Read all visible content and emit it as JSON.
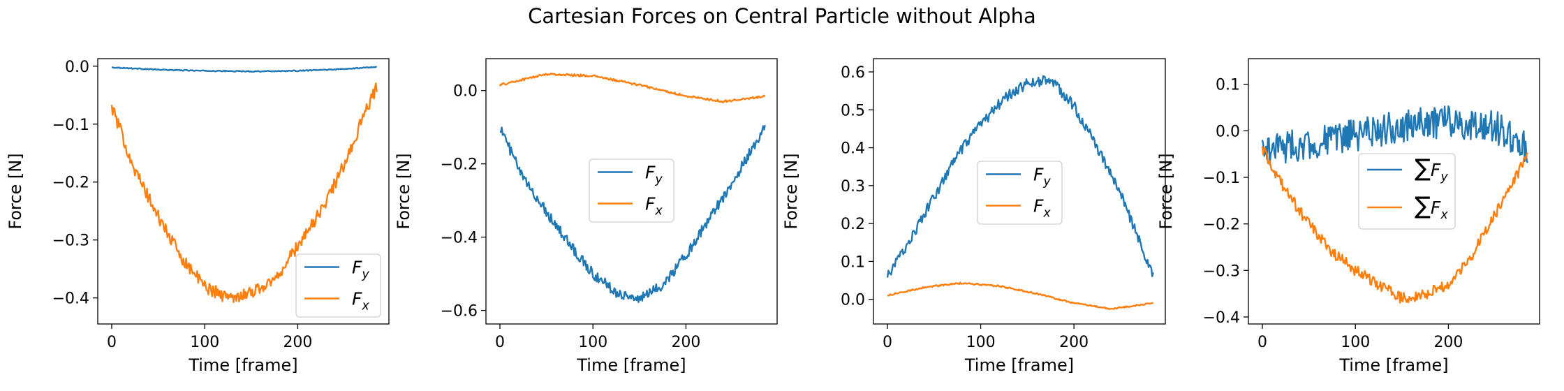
{
  "title": "Cartesian Forces on Central Particle without Alpha",
  "colors": {
    "Fy": "#1f77b4",
    "Fx": "#ff7f0e"
  },
  "chart_data": [
    {
      "type": "line",
      "xlabel": "Time [frame]",
      "ylabel": "Force [N]",
      "xlim": [
        -15,
        298
      ],
      "ylim": [
        -0.445,
        0.013
      ],
      "xticks": [
        0,
        100,
        200
      ],
      "yticks": [
        0.0,
        -0.1,
        -0.2,
        -0.3,
        -0.4
      ],
      "legend": "lower-right",
      "series": [
        {
          "name": "F_y",
          "key": "Fy",
          "noise": 0.0008,
          "x": [
            0,
            50,
            100,
            150,
            200,
            250,
            285
          ],
          "values": [
            -0.002,
            -0.006,
            -0.008,
            -0.009,
            -0.008,
            -0.005,
            -0.001
          ]
        },
        {
          "name": "F_x",
          "key": "Fx",
          "noise": 0.011,
          "x": [
            0,
            25,
            50,
            75,
            100,
            125,
            150,
            175,
            200,
            225,
            250,
            270,
            285
          ],
          "values": [
            -0.07,
            -0.18,
            -0.26,
            -0.33,
            -0.38,
            -0.4,
            -0.39,
            -0.37,
            -0.31,
            -0.25,
            -0.17,
            -0.09,
            -0.035
          ]
        }
      ]
    },
    {
      "type": "line",
      "xlabel": "Time [frame]",
      "ylabel": "Force [N]",
      "xlim": [
        -15,
        298
      ],
      "ylim": [
        -0.637,
        0.087
      ],
      "xticks": [
        0,
        100,
        200
      ],
      "yticks": [
        0.0,
        -0.2,
        -0.4,
        -0.6
      ],
      "legend": "center-right",
      "series": [
        {
          "name": "F_y",
          "key": "Fy",
          "noise": 0.014,
          "x": [
            0,
            25,
            50,
            75,
            100,
            125,
            150,
            175,
            200,
            225,
            250,
            285
          ],
          "values": [
            -0.1,
            -0.24,
            -0.33,
            -0.42,
            -0.5,
            -0.55,
            -0.57,
            -0.53,
            -0.45,
            -0.35,
            -0.25,
            -0.1
          ]
        },
        {
          "name": "F_x",
          "key": "Fx",
          "noise": 0.003,
          "x": [
            0,
            50,
            100,
            150,
            200,
            240,
            285
          ],
          "values": [
            0.015,
            0.045,
            0.04,
            0.015,
            -0.015,
            -0.03,
            -0.015
          ]
        }
      ]
    },
    {
      "type": "line",
      "xlabel": "Time [frame]",
      "ylabel": "Force [N]",
      "xlim": [
        -15,
        298
      ],
      "ylim": [
        -0.065,
        0.635
      ],
      "xticks": [
        0,
        100,
        200
      ],
      "yticks": [
        0.0,
        0.1,
        0.2,
        0.3,
        0.4,
        0.5,
        0.6
      ],
      "legend": "center-right",
      "series": [
        {
          "name": "F_y",
          "key": "Fy",
          "noise": 0.014,
          "x": [
            0,
            25,
            50,
            75,
            100,
            125,
            150,
            175,
            200,
            225,
            250,
            285
          ],
          "values": [
            0.06,
            0.16,
            0.27,
            0.38,
            0.46,
            0.53,
            0.57,
            0.58,
            0.51,
            0.4,
            0.28,
            0.06
          ]
        },
        {
          "name": "F_x",
          "key": "Fx",
          "noise": 0.002,
          "x": [
            0,
            40,
            80,
            120,
            160,
            200,
            240,
            285
          ],
          "values": [
            0.01,
            0.032,
            0.043,
            0.035,
            0.015,
            -0.01,
            -0.025,
            -0.01
          ]
        }
      ]
    },
    {
      "type": "line",
      "xlabel": "Time [frame]",
      "ylabel": "Force [N]",
      "xlim": [
        -15,
        298
      ],
      "ylim": [
        -0.415,
        0.155
      ],
      "xticks": [
        0,
        100,
        200
      ],
      "yticks": [
        0.1,
        0.0,
        -0.1,
        -0.2,
        -0.3,
        -0.4
      ],
      "legend": "center-right",
      "series": [
        {
          "name": "∑F_y",
          "key": "Fy",
          "noise": 0.035,
          "x": [
            0,
            50,
            100,
            150,
            200,
            250,
            270,
            285
          ],
          "values": [
            -0.04,
            -0.03,
            -0.01,
            0.01,
            0.02,
            0.01,
            -0.02,
            -0.04
          ]
        },
        {
          "name": "∑F_x",
          "key": "Fx",
          "noise": 0.012,
          "x": [
            0,
            25,
            50,
            75,
            100,
            125,
            150,
            175,
            200,
            225,
            250,
            270,
            285
          ],
          "values": [
            -0.04,
            -0.13,
            -0.2,
            -0.26,
            -0.3,
            -0.33,
            -0.36,
            -0.35,
            -0.33,
            -0.27,
            -0.18,
            -0.11,
            -0.05
          ]
        }
      ]
    }
  ]
}
